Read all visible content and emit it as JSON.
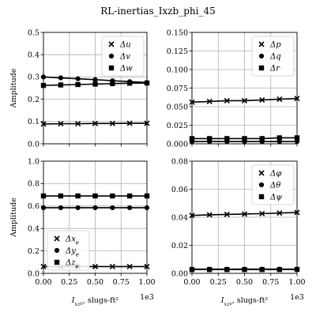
{
  "figure": {
    "title": "RL-inertias_Ixzb_phi_45",
    "x_exponent_label": "1e3",
    "xlabel": "I_xz_b, slugs-ft²"
  },
  "chart_data": [
    {
      "type": "line",
      "panel": "top-left",
      "ylabel": "Amplitude",
      "xlabel": "",
      "xlim": [
        0,
        1000
      ],
      "ylim": [
        0,
        0.5
      ],
      "x_ticks": [
        0,
        250,
        500,
        750,
        1000
      ],
      "x_tick_labels": [
        "",
        "",
        "",
        "",
        ""
      ],
      "y_ticks": [
        0.0,
        0.1,
        0.2,
        0.3,
        0.4,
        0.5
      ],
      "y_tick_labels": [
        "0.0",
        "0.1",
        "0.2",
        "0.3",
        "0.4",
        "0.5"
      ],
      "grid": true,
      "legend": {
        "position": "top-right"
      },
      "x": [
        0,
        167,
        333,
        500,
        667,
        833,
        1000
      ],
      "series": [
        {
          "name": "Δu",
          "marker": "x",
          "values": [
            0.089,
            0.09,
            0.09,
            0.091,
            0.091,
            0.092,
            0.092
          ]
        },
        {
          "name": "Δv",
          "marker": "o",
          "values": [
            0.3,
            0.296,
            0.292,
            0.288,
            0.283,
            0.279,
            0.275
          ]
        },
        {
          "name": "Δw",
          "marker": "s",
          "values": [
            0.262,
            0.264,
            0.266,
            0.268,
            0.27,
            0.272,
            0.273
          ]
        }
      ]
    },
    {
      "type": "line",
      "panel": "top-right",
      "ylabel": "",
      "xlabel": "",
      "xlim": [
        0,
        1000
      ],
      "ylim": [
        0,
        0.15
      ],
      "x_ticks": [
        0,
        250,
        500,
        750,
        1000
      ],
      "x_tick_labels": [
        "",
        "",
        "",
        "",
        ""
      ],
      "y_ticks": [
        0.0,
        0.025,
        0.05,
        0.075,
        0.1,
        0.125,
        0.15
      ],
      "y_tick_labels": [
        "0.000",
        "0.025",
        "0.050",
        "0.075",
        "0.100",
        "0.125",
        "0.150"
      ],
      "grid": true,
      "legend": {
        "position": "top-right"
      },
      "x": [
        0,
        167,
        333,
        500,
        667,
        833,
        1000
      ],
      "series": [
        {
          "name": "Δp",
          "marker": "x",
          "values": [
            0.056,
            0.057,
            0.058,
            0.058,
            0.059,
            0.06,
            0.061
          ]
        },
        {
          "name": "Δq",
          "marker": "o",
          "values": [
            0.003,
            0.003,
            0.003,
            0.003,
            0.003,
            0.003,
            0.003
          ]
        },
        {
          "name": "Δr",
          "marker": "s",
          "values": [
            0.007,
            0.007,
            0.007,
            0.007,
            0.007,
            0.008,
            0.008
          ]
        }
      ]
    },
    {
      "type": "line",
      "panel": "bottom-left",
      "ylabel": "Amplitude",
      "xlabel": "I_xz_b, slugs-ft²",
      "xlim": [
        0,
        1000
      ],
      "ylim": [
        0,
        1.0
      ],
      "x_ticks": [
        0,
        250,
        500,
        750,
        1000
      ],
      "x_tick_labels": [
        "0.00",
        "0.25",
        "0.50",
        "0.75",
        "1.00"
      ],
      "y_ticks": [
        0.0,
        0.2,
        0.4,
        0.6,
        0.8,
        1.0
      ],
      "y_tick_labels": [
        "0.0",
        "0.2",
        "0.4",
        "0.6",
        "0.8",
        "1.0"
      ],
      "grid": true,
      "legend": {
        "position": "bottom-left"
      },
      "x": [
        0,
        167,
        333,
        500,
        667,
        833,
        1000
      ],
      "series": [
        {
          "name": "Δx_e",
          "marker": "x",
          "values": [
            0.06,
            0.06,
            0.06,
            0.06,
            0.06,
            0.06,
            0.06
          ]
        },
        {
          "name": "Δy_e",
          "marker": "o",
          "values": [
            0.585,
            0.585,
            0.585,
            0.585,
            0.585,
            0.585,
            0.585
          ]
        },
        {
          "name": "Δz_e",
          "marker": "s",
          "values": [
            0.69,
            0.69,
            0.69,
            0.69,
            0.69,
            0.69,
            0.69
          ]
        }
      ]
    },
    {
      "type": "line",
      "panel": "bottom-right",
      "ylabel": "",
      "xlabel": "I_xz_b, slugs-ft²",
      "xlim": [
        0,
        1000
      ],
      "ylim": [
        0,
        0.08
      ],
      "x_ticks": [
        0,
        250,
        500,
        750,
        1000
      ],
      "x_tick_labels": [
        "0.00",
        "0.25",
        "0.50",
        "0.75",
        "1.00"
      ],
      "y_ticks": [
        0.0,
        0.02,
        0.04,
        0.06,
        0.08
      ],
      "y_tick_labels": [
        "0.00",
        "0.02",
        "0.04",
        "0.06",
        "0.08"
      ],
      "grid": true,
      "legend": {
        "position": "top-right"
      },
      "x": [
        0,
        167,
        333,
        500,
        667,
        833,
        1000
      ],
      "series": [
        {
          "name": "Δφ",
          "marker": "x",
          "values": [
            0.0413,
            0.0417,
            0.042,
            0.0423,
            0.0426,
            0.043,
            0.0434
          ]
        },
        {
          "name": "Δθ",
          "marker": "o",
          "values": [
            0.003,
            0.003,
            0.003,
            0.003,
            0.003,
            0.003,
            0.003
          ]
        },
        {
          "name": "Δψ",
          "marker": "s",
          "values": [
            0.0027,
            0.0027,
            0.0027,
            0.0027,
            0.0027,
            0.0027,
            0.0028
          ]
        }
      ]
    }
  ]
}
